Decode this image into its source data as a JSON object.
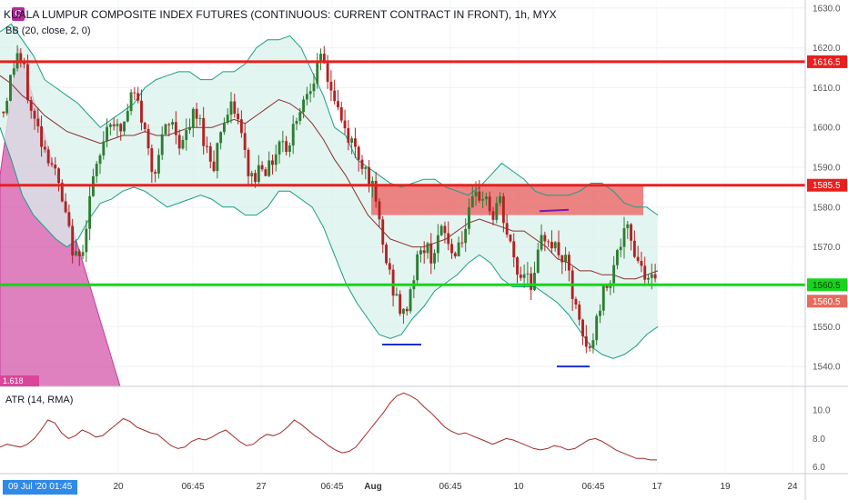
{
  "header": {
    "title": "KUALA LUMPUR COMPOSITE INDEX FUTURES (CONTINUOUS: CURRENT CONTRACT IN FRONT), 1h, MYX",
    "indicator": "BB (20, close, 2, 0)",
    "badge": "C"
  },
  "atr_label": "ATR (14, RMA)",
  "date_badge": "09 Jul '20  01:45",
  "pattern_label": "1.618",
  "colors": {
    "up_candle": "#2e7d32",
    "down_candle": "#b22222",
    "bb_band": "#1a9e84",
    "bb_basis": "#8b2e2e",
    "resistance": "#e6201f",
    "support": "#17d41c",
    "zone": "#ec6e6e",
    "pattern": "#d34fa6",
    "marker_blue": "#1a2dd4",
    "marker_purple": "#7a1aa8",
    "atr_line": "#a22a2a"
  },
  "chart_data": [
    {
      "type": "candlestick",
      "title": "KUALA LUMPUR COMPOSITE INDEX FUTURES (CONTINUOUS: CURRENT CONTRACT IN FRONT), 1h, MYX",
      "ylim": [
        1535,
        1632
      ],
      "y_ticks": [
        "1630.0",
        "1620.0",
        "1610.0",
        "1600.0",
        "1590.0",
        "1580.0",
        "1570.0",
        "1560.0",
        "1550.0",
        "1540.0"
      ],
      "x_ticks": [
        "20",
        "06:45",
        "27",
        "06:45",
        "Aug",
        "06:45",
        "10",
        "06:45",
        "17",
        "19",
        "24"
      ],
      "close_path": [
        1604,
        1612,
        1619,
        1614,
        1604,
        1600,
        1595,
        1592,
        1586,
        1578,
        1571,
        1565,
        1574,
        1586,
        1590,
        1600,
        1603,
        1598,
        1602,
        1609,
        1605,
        1597,
        1589,
        1594,
        1600,
        1601,
        1596,
        1598,
        1603,
        1601,
        1594,
        1591,
        1600,
        1603,
        1605,
        1598,
        1589,
        1587,
        1592,
        1589,
        1594,
        1598,
        1594,
        1603,
        1606,
        1611,
        1614,
        1617,
        1611,
        1606,
        1600,
        1597,
        1594,
        1591,
        1587,
        1579,
        1569,
        1562,
        1556,
        1552,
        1560,
        1567,
        1570,
        1568,
        1572,
        1574,
        1568,
        1571,
        1574,
        1580,
        1583,
        1583,
        1577,
        1582,
        1574,
        1568,
        1562,
        1565,
        1560,
        1570,
        1574,
        1570,
        1568,
        1565,
        1556,
        1549,
        1543,
        1548,
        1557,
        1561,
        1567,
        1571,
        1574,
        1569,
        1565,
        1563,
        1560
      ],
      "bollinger": {
        "upper": [
          1624,
          1626,
          1622,
          1618,
          1612,
          1610,
          1608,
          1606,
          1603,
          1600,
          1602,
          1604,
          1606,
          1610,
          1612,
          1613,
          1614,
          1614,
          1612,
          1612,
          1614,
          1614,
          1616,
          1620,
          1622,
          1622,
          1623,
          1620,
          1614,
          1608,
          1600,
          1598,
          1592,
          1590,
          1588,
          1586,
          1585,
          1586,
          1587,
          1587,
          1585,
          1584,
          1583,
          1585,
          1588,
          1591,
          1589,
          1587,
          1584,
          1583,
          1583,
          1583,
          1584,
          1586,
          1586,
          1584,
          1581,
          1580,
          1580,
          1578
        ],
        "basis": [
          1613,
          1611,
          1608,
          1606,
          1603,
          1601,
          1599,
          1598,
          1597,
          1596,
          1597,
          1598,
          1598,
          1599,
          1598,
          1598,
          1599,
          1600,
          1600,
          1600,
          1601,
          1602,
          1601,
          1603,
          1605,
          1607,
          1606,
          1604,
          1601,
          1597,
          1592,
          1588,
          1583,
          1578,
          1575,
          1572,
          1571,
          1570,
          1570,
          1571,
          1572,
          1574,
          1576,
          1577,
          1576,
          1575,
          1574,
          1574,
          1572,
          1570,
          1567,
          1566,
          1564,
          1564,
          1563,
          1563,
          1562,
          1562,
          1563,
          1564
        ],
        "lower": [
          1600,
          1592,
          1583,
          1578,
          1575,
          1572,
          1570,
          1572,
          1577,
          1581,
          1582,
          1584,
          1585,
          1584,
          1582,
          1580,
          1581,
          1582,
          1583,
          1582,
          1580,
          1580,
          1578,
          1578,
          1580,
          1584,
          1584,
          1582,
          1580,
          1575,
          1568,
          1561,
          1556,
          1552,
          1548,
          1547,
          1548,
          1552,
          1555,
          1559,
          1561,
          1563,
          1566,
          1568,
          1566,
          1562,
          1560,
          1560,
          1560,
          1558,
          1556,
          1553,
          1549,
          1545,
          1543,
          1542,
          1543,
          1545,
          1548,
          1550
        ]
      },
      "horizontal_levels": [
        {
          "label": "1616.5",
          "value": 1616.5,
          "color": "#e6201f"
        },
        {
          "label": "1585.5",
          "value": 1585.5,
          "color": "#e6201f"
        },
        {
          "label": "1560.5",
          "value": 1560.5,
          "color": "#17d41c"
        }
      ],
      "last_price_label": "1560.5",
      "resistance_zone": [
        1578,
        1585.5
      ],
      "markers": [
        {
          "value": 1545.5,
          "color": "#1a2dd4"
        },
        {
          "value": 1540,
          "color": "#1a2dd4"
        },
        {
          "value": 1579,
          "color": "#7a1aa8"
        }
      ]
    },
    {
      "type": "line",
      "title": "ATR (14, RMA)",
      "ylim": [
        5.6,
        11.6
      ],
      "y_ticks": [
        "10.0",
        "8.0",
        "6.0"
      ],
      "values": [
        7.4,
        7.6,
        7.5,
        7.4,
        7.6,
        8.0,
        8.6,
        9.3,
        9.1,
        8.4,
        8.0,
        8.2,
        8.6,
        8.4,
        8.1,
        8.2,
        8.6,
        9.0,
        9.4,
        9.2,
        8.8,
        8.6,
        8.4,
        8.3,
        7.9,
        7.5,
        7.3,
        7.4,
        7.8,
        8.0,
        7.9,
        8.1,
        8.4,
        8.6,
        8.2,
        7.8,
        7.5,
        7.6,
        8.0,
        8.3,
        8.2,
        8.4,
        8.8,
        9.3,
        9.0,
        8.6,
        8.2,
        7.9,
        7.5,
        7.2,
        7.0,
        7.1,
        7.4,
        8.0,
        8.6,
        9.2,
        9.8,
        10.5,
        11.0,
        11.2,
        11.0,
        10.7,
        10.2,
        9.8,
        9.3,
        8.8,
        8.5,
        8.3,
        8.4,
        8.2,
        8.0,
        7.8,
        7.6,
        7.8,
        8.0,
        7.9,
        7.7,
        7.5,
        7.3,
        7.2,
        7.3,
        7.5,
        7.4,
        7.2,
        7.3,
        7.6,
        7.9,
        8.0,
        7.8,
        7.5,
        7.2,
        7.0,
        6.8,
        6.6,
        6.6,
        6.5,
        6.5
      ]
    }
  ]
}
